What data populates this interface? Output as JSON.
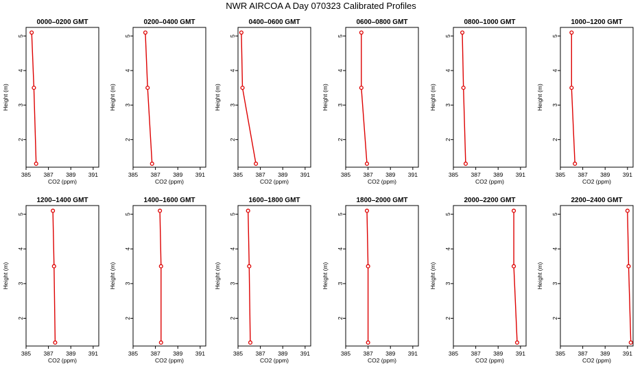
{
  "title": "NWR AIRCOA A  Day 070323  Calibrated Profiles",
  "colors": {
    "series": "#dd0000",
    "frame": "#000000",
    "background": "#ffffff"
  },
  "chart_data": [
    {
      "type": "line",
      "title": "0000–0200 GMT",
      "xlabel": "CO2 (ppm)",
      "ylabel": "Height (m)",
      "xlim": [
        385,
        391.5
      ],
      "ylim": [
        1.2,
        5.25
      ],
      "x_ticks": [
        "385",
        "387",
        "389",
        "391"
      ],
      "y_ticks": [
        "2",
        "3",
        "4",
        "5"
      ],
      "x": [
        385.5,
        385.7,
        385.9
      ],
      "y": [
        5.1,
        3.5,
        1.3
      ]
    },
    {
      "type": "line",
      "title": "0200–0400 GMT",
      "xlabel": "CO2 (ppm)",
      "ylabel": "Height (m)",
      "xlim": [
        385,
        391.5
      ],
      "ylim": [
        1.2,
        5.25
      ],
      "x_ticks": [
        "385",
        "387",
        "389",
        "391"
      ],
      "y_ticks": [
        "2",
        "3",
        "4",
        "5"
      ],
      "x": [
        386.1,
        386.3,
        386.7
      ],
      "y": [
        5.1,
        3.5,
        1.3
      ]
    },
    {
      "type": "line",
      "title": "0400–0600 GMT",
      "xlabel": "CO2 (ppm)",
      "ylabel": "Height (m)",
      "xlim": [
        385,
        391.5
      ],
      "ylim": [
        1.2,
        5.25
      ],
      "x_ticks": [
        "385",
        "387",
        "389",
        "391"
      ],
      "y_ticks": [
        "2",
        "3",
        "4",
        "5"
      ],
      "x": [
        385.3,
        385.4,
        386.6
      ],
      "y": [
        5.1,
        3.5,
        1.3
      ]
    },
    {
      "type": "line",
      "title": "0600–0800 GMT",
      "xlabel": "CO2 (ppm)",
      "ylabel": "Height (m)",
      "xlim": [
        385,
        391.5
      ],
      "ylim": [
        1.2,
        5.25
      ],
      "x_ticks": [
        "385",
        "387",
        "389",
        "391"
      ],
      "y_ticks": [
        "2",
        "3",
        "4",
        "5"
      ],
      "x": [
        386.4,
        386.4,
        386.9
      ],
      "y": [
        5.1,
        3.5,
        1.3
      ]
    },
    {
      "type": "line",
      "title": "0800–1000 GMT",
      "xlabel": "CO2 (ppm)",
      "ylabel": "Height (m)",
      "xlim": [
        385,
        391.5
      ],
      "ylim": [
        1.2,
        5.25
      ],
      "x_ticks": [
        "385",
        "387",
        "389",
        "391"
      ],
      "y_ticks": [
        "2",
        "3",
        "4",
        "5"
      ],
      "x": [
        385.8,
        385.9,
        386.1
      ],
      "y": [
        5.1,
        3.5,
        1.3
      ]
    },
    {
      "type": "line",
      "title": "1000–1200 GMT",
      "xlabel": "CO2 (ppm)",
      "ylabel": "Height (m)",
      "xlim": [
        385,
        391.5
      ],
      "ylim": [
        1.2,
        5.25
      ],
      "x_ticks": [
        "385",
        "387",
        "389",
        "391"
      ],
      "y_ticks": [
        "2",
        "3",
        "4",
        "5"
      ],
      "x": [
        386.0,
        386.0,
        386.3
      ],
      "y": [
        5.1,
        3.5,
        1.3
      ]
    },
    {
      "type": "line",
      "title": "1200–1400 GMT",
      "xlabel": "CO2 (ppm)",
      "ylabel": "Height (m)",
      "xlim": [
        385,
        391.5
      ],
      "ylim": [
        1.2,
        5.25
      ],
      "x_ticks": [
        "385",
        "387",
        "389",
        "391"
      ],
      "y_ticks": [
        "2",
        "3",
        "4",
        "5"
      ],
      "x": [
        387.4,
        387.5,
        387.6
      ],
      "y": [
        5.1,
        3.5,
        1.3
      ]
    },
    {
      "type": "line",
      "title": "1400–1600 GMT",
      "xlabel": "CO2 (ppm)",
      "ylabel": "Height (m)",
      "xlim": [
        385,
        391.5
      ],
      "ylim": [
        1.2,
        5.25
      ],
      "x_ticks": [
        "385",
        "387",
        "389",
        "391"
      ],
      "y_ticks": [
        "2",
        "3",
        "4",
        "5"
      ],
      "x": [
        387.4,
        387.5,
        387.5
      ],
      "y": [
        5.1,
        3.5,
        1.3
      ]
    },
    {
      "type": "line",
      "title": "1600–1800 GMT",
      "xlabel": "CO2 (ppm)",
      "ylabel": "Height (m)",
      "xlim": [
        385,
        391.5
      ],
      "ylim": [
        1.2,
        5.25
      ],
      "x_ticks": [
        "385",
        "387",
        "389",
        "391"
      ],
      "y_ticks": [
        "2",
        "3",
        "4",
        "5"
      ],
      "x": [
        385.9,
        386.0,
        386.1
      ],
      "y": [
        5.1,
        3.5,
        1.3
      ]
    },
    {
      "type": "line",
      "title": "1800–2000 GMT",
      "xlabel": "CO2 (ppm)",
      "ylabel": "Height (m)",
      "xlim": [
        385,
        391.5
      ],
      "ylim": [
        1.2,
        5.25
      ],
      "x_ticks": [
        "385",
        "387",
        "389",
        "391"
      ],
      "y_ticks": [
        "2",
        "3",
        "4",
        "5"
      ],
      "x": [
        386.9,
        387.0,
        387.0
      ],
      "y": [
        5.1,
        3.5,
        1.3
      ]
    },
    {
      "type": "line",
      "title": "2000–2200 GMT",
      "xlabel": "CO2 (ppm)",
      "ylabel": "Height (m)",
      "xlim": [
        385,
        391.5
      ],
      "ylim": [
        1.2,
        5.25
      ],
      "x_ticks": [
        "385",
        "387",
        "389",
        "391"
      ],
      "y_ticks": [
        "2",
        "3",
        "4",
        "5"
      ],
      "x": [
        390.4,
        390.4,
        390.7
      ],
      "y": [
        5.1,
        3.5,
        1.3
      ]
    },
    {
      "type": "line",
      "title": "2200–2400 GMT",
      "xlabel": "CO2 (ppm)",
      "ylabel": "Height (m)",
      "xlim": [
        385,
        391.5
      ],
      "ylim": [
        1.2,
        5.25
      ],
      "x_ticks": [
        "385",
        "387",
        "389",
        "391"
      ],
      "y_ticks": [
        "2",
        "3",
        "4",
        "5"
      ],
      "x": [
        391.0,
        391.1,
        391.3
      ],
      "y": [
        5.1,
        3.5,
        1.3
      ]
    }
  ]
}
